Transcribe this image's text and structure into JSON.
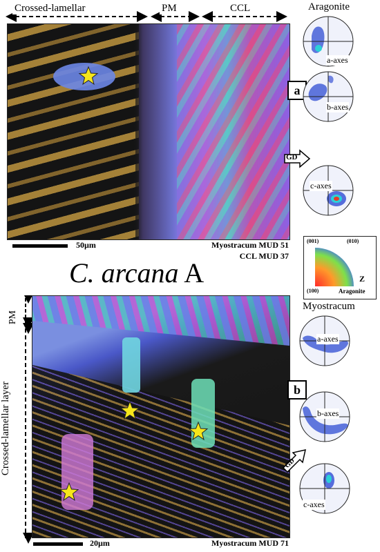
{
  "panel_a": {
    "header_crossed": "Crossed-lamellar",
    "header_pm": "PM",
    "header_ccl": "CCL",
    "tag": "a",
    "scale": "50µm",
    "meta_line1": "Myostracum MUD 51",
    "meta_line2": "CCL MUD 37"
  },
  "title": {
    "italic": "C. arcana",
    "suffix": " A"
  },
  "pole_figures_a": {
    "title": "Aragonite",
    "labels": [
      "a-axes",
      "b-axes",
      "c-axes"
    ],
    "gd": "GD"
  },
  "legend": {
    "label_001": "(001)",
    "label_010": "(010)",
    "label_100": "(100)",
    "axis": "Z",
    "phase": "Aragonite"
  },
  "panel_b": {
    "side_pm": "PM",
    "side_crossed": "Crossed-lamellar layer",
    "tag": "b",
    "scale": "20µm",
    "meta": "Myostracum MUD 71"
  },
  "pole_figures_b": {
    "title": "Myostracum",
    "labels": [
      "a-axes",
      "b-axes",
      "c-axes"
    ],
    "gd": "GD"
  },
  "colors": {
    "star": "#f6e61b",
    "contour": "#1b3dd0",
    "map_dark": "#141414"
  }
}
